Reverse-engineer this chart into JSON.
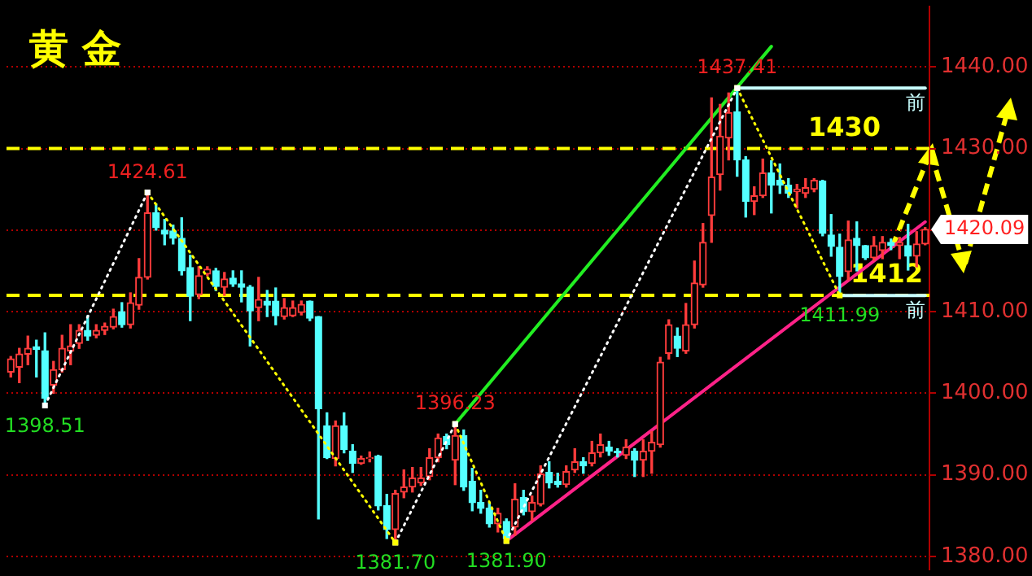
{
  "chart_data": {
    "type": "candlestick",
    "title": "黄 金",
    "tick_labels": "y",
    "grid": "y",
    "categories": [
      null,
      null,
      null,
      null,
      null,
      null,
      null,
      null,
      null,
      null,
      null,
      null,
      null,
      null,
      null,
      null,
      null,
      null,
      null,
      null,
      null,
      null,
      null,
      null,
      null,
      null,
      null,
      null,
      null,
      null,
      null,
      null,
      null,
      null,
      null,
      null,
      null,
      null,
      null,
      null,
      null,
      null,
      null,
      null,
      null,
      null,
      null,
      null,
      null,
      null,
      null,
      null,
      null,
      null,
      null,
      null,
      null,
      null,
      null,
      null,
      null,
      null,
      null,
      null,
      null,
      null,
      null,
      null,
      null,
      null,
      null,
      null,
      null,
      null,
      null,
      null,
      null,
      null,
      null,
      null,
      null,
      null,
      null,
      null,
      null,
      null,
      null,
      null,
      null,
      null,
      null,
      null,
      null,
      null,
      null,
      null,
      null,
      null,
      null,
      null,
      null,
      null,
      null,
      null,
      null,
      null,
      null,
      null
    ],
    "ohlc": [
      [
        1402.6,
        1404.5,
        1402,
        1404.2
      ],
      [
        1403.2,
        1405.5,
        1401.3,
        1404.8
      ],
      [
        1404.8,
        1407,
        1403.5,
        1405.5
      ],
      [
        1405.7,
        1406.5,
        1402,
        1405.4
      ],
      [
        1405.2,
        1407.4,
        1398.51,
        1399.4
      ],
      [
        1401,
        1403.9,
        1400,
        1402.9
      ],
      [
        1402.9,
        1407.1,
        1402.6,
        1405.5
      ],
      [
        1405.2,
        1408.4,
        1403.5,
        1405.8
      ],
      [
        1406.1,
        1408.4,
        1405.5,
        1407.7
      ],
      [
        1407.7,
        1409.5,
        1406.5,
        1407
      ],
      [
        1407.1,
        1408.4,
        1406.8,
        1407.7
      ],
      [
        1407.7,
        1408.6,
        1407.2,
        1408.2
      ],
      [
        1408.1,
        1410.3,
        1407.9,
        1409.4
      ],
      [
        1410,
        1411.1,
        1408.1,
        1408.4
      ],
      [
        1408.4,
        1412.3,
        1408,
        1411.1
      ],
      [
        1410.8,
        1416.5,
        1410.3,
        1414.2
      ],
      [
        1414.2,
        1424.61,
        1414,
        1422.1
      ],
      [
        1422.1,
        1423.2,
        1420,
        1420.3
      ],
      [
        1420,
        1421.3,
        1418.2,
        1419.5
      ],
      [
        1419.9,
        1420.6,
        1418.3,
        1419
      ],
      [
        1419,
        1421.5,
        1414.5,
        1415
      ],
      [
        1415.4,
        1416.9,
        1408.9,
        1411.9
      ],
      [
        1412.1,
        1415.5,
        1411.6,
        1414.4
      ],
      [
        1414.6,
        1415.5,
        1414.4,
        1415.2
      ],
      [
        1415,
        1415.3,
        1412.6,
        1413.1
      ],
      [
        1413,
        1414.8,
        1412,
        1414
      ],
      [
        1414.1,
        1415,
        1413.1,
        1413.4
      ],
      [
        1413.4,
        1415,
        1411.2,
        1413
      ],
      [
        1413,
        1413.2,
        1405.8,
        1410.1
      ],
      [
        1410.5,
        1414.2,
        1408.9,
        1411.5
      ],
      [
        1411.3,
        1412.6,
        1409.4,
        1410.8
      ],
      [
        1411.3,
        1412.9,
        1408.4,
        1409.5
      ],
      [
        1409.4,
        1411.6,
        1409.1,
        1410.5
      ],
      [
        1409.5,
        1411.3,
        1409.4,
        1410.5
      ],
      [
        1409.9,
        1411.3,
        1409.6,
        1410.9
      ],
      [
        1411.3,
        1411.3,
        1408.9,
        1409.2
      ],
      [
        1409.4,
        1409.4,
        1384.6,
        1398.1
      ],
      [
        1396,
        1397.6,
        1392,
        1392.1
      ],
      [
        1392,
        1396.6,
        1391.1,
        1396
      ],
      [
        1396,
        1397.6,
        1392.7,
        1393.1
      ],
      [
        1392.9,
        1393.7,
        1390.3,
        1391.4
      ],
      [
        1391.4,
        1392.3,
        1391.3,
        1392
      ],
      [
        1392,
        1392.8,
        1391.6,
        1392.1
      ],
      [
        1392.3,
        1392.4,
        1385.7,
        1386.2
      ],
      [
        1386.2,
        1387.6,
        1382.2,
        1383.3
      ],
      [
        1383.3,
        1388.1,
        1381.7,
        1387.7
      ],
      [
        1387.9,
        1390.6,
        1387.2,
        1388.5
      ],
      [
        1388.5,
        1390.9,
        1387.9,
        1389.6
      ],
      [
        1389,
        1390.9,
        1388.7,
        1389.6
      ],
      [
        1389.8,
        1393.2,
        1389.4,
        1392.1
      ],
      [
        1392.1,
        1395,
        1391.6,
        1394.5
      ],
      [
        1394.7,
        1395,
        1393.2,
        1393.7
      ],
      [
        1391.8,
        1396.23,
        1388.8,
        1394.8
      ],
      [
        1394.8,
        1395.5,
        1388.1,
        1388.5
      ],
      [
        1389.2,
        1390.8,
        1385.6,
        1386.6
      ],
      [
        1386.6,
        1388.1,
        1385.3,
        1385.9
      ],
      [
        1385.9,
        1386.6,
        1383.6,
        1384
      ],
      [
        1384,
        1385.9,
        1383,
        1385.3
      ],
      [
        1384.3,
        1384.6,
        1381.9,
        1382.2
      ],
      [
        1383.6,
        1388.9,
        1382.6,
        1387
      ],
      [
        1387.2,
        1388.1,
        1385.1,
        1385.5
      ],
      [
        1385.5,
        1387.4,
        1384.4,
        1386.6
      ],
      [
        1386.4,
        1391.1,
        1386.2,
        1390.1
      ],
      [
        1390.3,
        1391.6,
        1388.4,
        1389
      ],
      [
        1389.2,
        1390.2,
        1388.5,
        1388.8
      ],
      [
        1388.8,
        1391.1,
        1388.5,
        1390.4
      ],
      [
        1390.6,
        1393.2,
        1390.3,
        1391.6
      ],
      [
        1391.6,
        1392.1,
        1390.2,
        1391.1
      ],
      [
        1391.4,
        1394.1,
        1391.1,
        1392.7
      ],
      [
        1392.7,
        1395,
        1392.2,
        1393.7
      ],
      [
        1393.4,
        1394.1,
        1392.4,
        1392.9
      ],
      [
        1392.9,
        1393.2,
        1392.2,
        1392.7
      ],
      [
        1392.4,
        1394.3,
        1392,
        1393.4
      ],
      [
        1392.9,
        1393.2,
        1389.8,
        1391.8
      ],
      [
        1391.8,
        1394.3,
        1389.8,
        1392.9
      ],
      [
        1392.9,
        1395.3,
        1390.2,
        1394
      ],
      [
        1393.7,
        1404.4,
        1393.4,
        1403.8
      ],
      [
        1404.9,
        1409,
        1404.2,
        1408.4
      ],
      [
        1407,
        1408,
        1404.5,
        1405.5
      ],
      [
        1405.2,
        1411,
        1404.9,
        1408.4
      ],
      [
        1408.4,
        1416.2,
        1408,
        1413.5
      ],
      [
        1413.3,
        1420.8,
        1413,
        1418.5
      ],
      [
        1421.8,
        1436.2,
        1418.5,
        1426.5
      ],
      [
        1426.8,
        1435.4,
        1424.9,
        1431.5
      ],
      [
        1431.3,
        1436.8,
        1428.6,
        1434.4
      ],
      [
        1434.5,
        1437.41,
        1426.6,
        1428.6
      ],
      [
        1428.6,
        1429,
        1421.6,
        1423.5
      ],
      [
        1423.5,
        1425.3,
        1421.9,
        1424.2
      ],
      [
        1424.2,
        1428.7,
        1424,
        1427
      ],
      [
        1427,
        1428.5,
        1422.1,
        1425.5
      ],
      [
        1426.1,
        1428.1,
        1424.5,
        1425.5
      ],
      [
        1425.5,
        1426.3,
        1424,
        1424.5
      ],
      [
        1424.7,
        1425.6,
        1422.7,
        1425
      ],
      [
        1424.5,
        1426.3,
        1424,
        1425.2
      ],
      [
        1425,
        1426.3,
        1424.7,
        1426.1
      ],
      [
        1426,
        1426.1,
        1419.3,
        1419.6
      ],
      [
        1419.4,
        1421.9,
        1416.8,
        1418
      ],
      [
        1417.9,
        1419.5,
        1411.99,
        1414.3
      ],
      [
        1414.9,
        1421.1,
        1413.9,
        1418.8
      ],
      [
        1419,
        1421,
        1415,
        1418.1
      ],
      [
        1418.1,
        1418.1,
        1416.4,
        1416.6
      ],
      [
        1416.6,
        1419.2,
        1416.3,
        1418.1
      ],
      [
        1417.5,
        1419.2,
        1416.5,
        1418.5
      ],
      [
        1418.5,
        1418.9,
        1417.6,
        1418.1
      ],
      [
        1418.1,
        1419.1,
        1416.5,
        1418.5
      ],
      [
        1418.1,
        1420.7,
        1415.1,
        1416.8
      ],
      [
        1416.8,
        1419.8,
        1415.5,
        1418.3
      ],
      [
        1418.3,
        1420.3,
        1418.2,
        1420.09
      ]
    ],
    "ylim": [
      1378.4,
      1447.4
    ],
    "yticks": [
      {
        "value": 1380,
        "label": "1380.00"
      },
      {
        "value": 1390,
        "label": "1390.00"
      },
      {
        "value": 1400,
        "label": "1400.00"
      },
      {
        "value": 1410,
        "label": "1410.00"
      },
      {
        "value": 1420,
        "label": null
      },
      {
        "value": 1430,
        "label": "1430.00"
      },
      {
        "value": 1440,
        "label": "1440.00"
      }
    ],
    "series": [
      {
        "type": "line",
        "marker": "square",
        "line_style": "dotted",
        "values": [
          null,
          null,
          null,
          null,
          1398.51,
          null,
          null,
          null,
          null,
          null,
          null,
          null,
          null,
          null,
          null,
          null,
          1424.61,
          null,
          null,
          null,
          null,
          null,
          null,
          null,
          null,
          null,
          null,
          null,
          null,
          null,
          null,
          null,
          null,
          null,
          null,
          null,
          null,
          null,
          null,
          null,
          null,
          null,
          null,
          null,
          null,
          1381.7,
          null,
          null,
          null,
          null,
          null,
          null,
          1396.23,
          null,
          null,
          null,
          null,
          null,
          1381.9,
          null,
          null,
          null,
          null,
          null,
          null,
          null,
          null,
          null,
          null,
          null,
          null,
          null,
          null,
          null,
          null,
          null,
          null,
          null,
          null,
          null,
          null,
          null,
          null,
          null,
          null,
          1437.41,
          null,
          null,
          null,
          null,
          null,
          null,
          null,
          null,
          null,
          null,
          null,
          1411.99,
          null,
          null,
          null,
          null,
          null,
          null,
          null,
          null,
          null,
          null
        ],
        "value_labels": [
          null,
          null,
          null,
          null,
          "1398.51",
          null,
          null,
          null,
          null,
          null,
          null,
          null,
          null,
          null,
          null,
          null,
          "1424.61",
          null,
          null,
          null,
          null,
          null,
          null,
          null,
          null,
          null,
          null,
          null,
          null,
          null,
          null,
          null,
          null,
          null,
          null,
          null,
          null,
          null,
          null,
          null,
          null,
          null,
          null,
          null,
          null,
          "1381.70",
          null,
          null,
          null,
          null,
          null,
          null,
          "1396.23",
          null,
          null,
          null,
          null,
          null,
          "1381.90",
          null,
          null,
          null,
          null,
          null,
          null,
          null,
          null,
          null,
          null,
          null,
          null,
          null,
          null,
          null,
          null,
          null,
          null,
          null,
          null,
          null,
          null,
          null,
          null,
          null,
          null,
          "1437.41",
          null,
          null,
          null,
          null,
          null,
          null,
          null,
          null,
          null,
          null,
          null,
          "1411.99",
          null,
          null,
          null,
          null,
          null,
          null,
          null,
          null,
          null,
          null
        ],
        "colors": [
          null,
          null,
          null,
          null,
          "#ffffff",
          null,
          null,
          null,
          null,
          null,
          null,
          null,
          null,
          null,
          null,
          null,
          "#ffff00",
          null,
          null,
          null,
          null,
          null,
          null,
          null,
          null,
          null,
          null,
          null,
          null,
          null,
          null,
          null,
          null,
          null,
          null,
          null,
          null,
          null,
          null,
          null,
          null,
          null,
          null,
          null,
          null,
          "#ffffff",
          null,
          null,
          null,
          null,
          null,
          null,
          "#ffff00",
          null,
          null,
          null,
          null,
          null,
          "#ffffff",
          null,
          null,
          null,
          null,
          null,
          null,
          null,
          null,
          null,
          null,
          null,
          null,
          null,
          null,
          null,
          null,
          null,
          null,
          null,
          null,
          null,
          null,
          null,
          null,
          null,
          null,
          "#ffff00",
          null,
          null,
          null,
          null,
          null,
          null,
          null,
          null,
          null,
          null,
          null,
          null,
          null,
          null,
          null,
          null,
          null,
          null,
          null,
          null,
          null,
          null
        ]
      },
      {
        "type": "line",
        "color": "#22ee22",
        "values": [
          null,
          null,
          null,
          null,
          null,
          null,
          null,
          null,
          null,
          null,
          null,
          null,
          null,
          null,
          null,
          null,
          null,
          null,
          null,
          null,
          null,
          null,
          null,
          null,
          null,
          null,
          null,
          null,
          null,
          null,
          null,
          null,
          null,
          null,
          null,
          null,
          null,
          null,
          null,
          null,
          null,
          null,
          null,
          null,
          null,
          null,
          null,
          null,
          null,
          null,
          null,
          null,
          1396.23,
          null,
          null,
          null,
          null,
          null,
          null,
          null,
          null,
          null,
          null,
          null,
          null,
          null,
          null,
          null,
          null,
          null,
          null,
          null,
          null,
          null,
          null,
          null,
          null,
          null,
          null,
          null,
          null,
          null,
          null,
          null,
          null,
          null,
          null,
          null,
          null,
          1442.5,
          null,
          null,
          null,
          null,
          null,
          null,
          null,
          null,
          null,
          null,
          null,
          null,
          null,
          null,
          null,
          null,
          null,
          null
        ]
      },
      {
        "type": "line",
        "color": "#ff2288",
        "values": [
          null,
          null,
          null,
          null,
          null,
          null,
          null,
          null,
          null,
          null,
          null,
          null,
          null,
          null,
          null,
          null,
          null,
          null,
          null,
          null,
          null,
          null,
          null,
          null,
          null,
          null,
          null,
          null,
          null,
          null,
          null,
          null,
          null,
          null,
          null,
          null,
          null,
          null,
          null,
          null,
          null,
          null,
          null,
          null,
          null,
          null,
          null,
          null,
          null,
          null,
          null,
          null,
          null,
          null,
          null,
          null,
          null,
          null,
          1381.9,
          null,
          null,
          null,
          null,
          null,
          null,
          null,
          null,
          null,
          null,
          null,
          null,
          null,
          null,
          null,
          null,
          null,
          null,
          null,
          null,
          null,
          null,
          null,
          null,
          null,
          null,
          null,
          null,
          null,
          null,
          null,
          null,
          null,
          null,
          null,
          null,
          null,
          null,
          null,
          null,
          null,
          null,
          null,
          null,
          null,
          null,
          null,
          null,
          1421
        ]
      },
      {
        "type": "line",
        "name": "前",
        "color": "#c8ffff",
        "values": [
          null,
          null,
          null,
          null,
          null,
          null,
          null,
          null,
          null,
          null,
          null,
          null,
          null,
          null,
          null,
          null,
          null,
          null,
          null,
          null,
          null,
          null,
          null,
          null,
          null,
          null,
          null,
          null,
          null,
          null,
          null,
          null,
          null,
          null,
          null,
          null,
          null,
          null,
          null,
          null,
          null,
          null,
          null,
          null,
          null,
          null,
          null,
          null,
          null,
          null,
          null,
          null,
          null,
          null,
          null,
          null,
          null,
          null,
          null,
          null,
          null,
          null,
          null,
          null,
          null,
          null,
          null,
          null,
          null,
          null,
          null,
          null,
          null,
          null,
          null,
          null,
          null,
          null,
          null,
          null,
          null,
          null,
          null,
          null,
          null,
          1437.41,
          null,
          null,
          null,
          null,
          null,
          null,
          null,
          null,
          null,
          null,
          null,
          null,
          null,
          null,
          null,
          null,
          null,
          null,
          null,
          null,
          null,
          1437.41
        ]
      },
      {
        "type": "line",
        "name": "前",
        "color": "#c8ffff",
        "values": [
          null,
          null,
          null,
          null,
          null,
          null,
          null,
          null,
          null,
          null,
          null,
          null,
          null,
          null,
          null,
          null,
          null,
          null,
          null,
          null,
          null,
          null,
          null,
          null,
          null,
          null,
          null,
          null,
          null,
          null,
          null,
          null,
          null,
          null,
          null,
          null,
          null,
          null,
          null,
          null,
          null,
          null,
          null,
          null,
          null,
          null,
          null,
          null,
          null,
          null,
          null,
          null,
          null,
          null,
          null,
          null,
          null,
          null,
          null,
          null,
          null,
          null,
          null,
          null,
          null,
          null,
          null,
          null,
          null,
          null,
          null,
          null,
          null,
          null,
          null,
          null,
          null,
          null,
          null,
          null,
          null,
          null,
          null,
          null,
          null,
          null,
          null,
          null,
          null,
          null,
          null,
          null,
          null,
          null,
          null,
          null,
          null,
          1411.99,
          null,
          null,
          null,
          null,
          null,
          null,
          null,
          null,
          null,
          1411.99
        ]
      }
    ],
    "ref_lines": [
      {
        "axis": "y",
        "value": 1430,
        "label": "1430",
        "color": "#ffff00",
        "line_style": "dashed"
      },
      {
        "axis": "y",
        "value": 1412,
        "label": "1412",
        "color": "#ffff00",
        "line_style": "dashed"
      }
    ],
    "annotations": [
      "1420.09"
    ]
  }
}
